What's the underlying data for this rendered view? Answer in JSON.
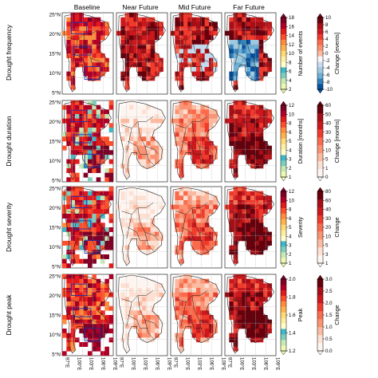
{
  "columns": [
    "Baseline",
    "Near Future",
    "Mid Future",
    "Far Future"
  ],
  "rows": [
    {
      "label": "Drought frequency",
      "base_bar": {
        "label": "Number of events",
        "ticks": [
          "2",
          "4",
          "6",
          "8",
          "10",
          "12",
          "14",
          "16",
          "18"
        ],
        "type": "ylgnbu_rev"
      },
      "chg_bar": {
        "label": "Change [events]",
        "ticks": [
          "-10",
          "-8",
          "-6",
          "-4",
          "-2",
          "0",
          "2",
          "4",
          "6",
          "8",
          "10"
        ],
        "type": "diverging"
      }
    },
    {
      "label": "Drought duration",
      "base_bar": {
        "label": "Duration [months]",
        "ticks": [
          "1",
          "2",
          "3",
          "4",
          "5",
          "6",
          "8",
          "10",
          "12"
        ],
        "type": "ylgnbu_rev"
      },
      "chg_bar": {
        "label": "Change [months]",
        "ticks": [
          "0",
          "1",
          "5",
          "10",
          "20",
          "30",
          "40",
          "50",
          "60"
        ],
        "type": "reds"
      }
    },
    {
      "label": "Drought severity",
      "base_bar": {
        "label": "Severity",
        "ticks": [
          "1",
          "2",
          "3",
          "4",
          "5",
          "6",
          "8",
          "10",
          "12"
        ],
        "type": "ylgnbu_rev"
      },
      "chg_bar": {
        "label": "Change",
        "ticks": [
          "1",
          "3",
          "5",
          "10",
          "20",
          "30",
          "40",
          "60",
          "80"
        ],
        "type": "reds"
      }
    },
    {
      "label": "Drought peak",
      "base_bar": {
        "label": "Peak",
        "ticks": [
          "1.2",
          "1.4",
          "1.6",
          "1.8",
          "2.0"
        ],
        "type": "ylgnbu_rev"
      },
      "chg_bar": {
        "label": "Change",
        "ticks": [
          "0.0",
          "0.5",
          "1.0",
          "1.5",
          "2.0",
          "2.5",
          "3.0"
        ],
        "type": "reds"
      }
    }
  ],
  "lat_ticks": [
    "25°N",
    "20°N",
    "15°N",
    "10°N",
    "5°N"
  ],
  "lon_ticks": [
    "97°E",
    "100°E",
    "103°E",
    "106°E",
    "109°E"
  ],
  "colors": {
    "baseline_scale": [
      "#ffffcc",
      "#ffeda0",
      "#fed976",
      "#feb24c",
      "#fd8d3c",
      "#fc4e2a",
      "#e31a1c",
      "#b10026",
      "#800026"
    ],
    "baseline_low": [
      "#41b6c4",
      "#7fcdbb",
      "#c7e9b4",
      "#edf8b1"
    ],
    "reds": [
      "#fff5f0",
      "#fee0d2",
      "#fcbba1",
      "#fc9272",
      "#fb6a4a",
      "#ef3b2c",
      "#cb181d",
      "#a50f15",
      "#67000d"
    ],
    "blues": [
      "#08519c",
      "#3182bd",
      "#6baed6",
      "#9ecae1",
      "#c6dbef"
    ],
    "box_outline": "#1f2fae",
    "border_line": "#222222"
  }
}
